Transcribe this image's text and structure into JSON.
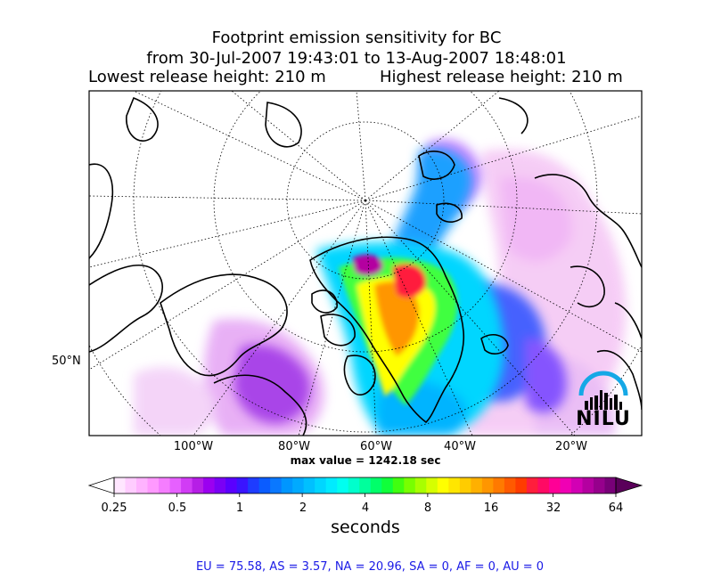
{
  "title": {
    "line1": "Footprint emission sensitivity for BC",
    "line2": "from 30-Jul-2007 19:43:01 to 13-Aug-2007 18:48:01",
    "lowest": "Lowest release height: 210 m",
    "highest": "Highest release height: 210 m"
  },
  "map": {
    "lat_label": "50°N",
    "lon_labels": [
      "100°W",
      "80°W",
      "60°W",
      "40°W",
      "20°W"
    ],
    "max_value": "max value = 1242.18 sec",
    "logo_text": "NILU"
  },
  "colorbar": {
    "ticks": [
      "0.25",
      "0.5",
      "1",
      "2",
      "4",
      "8",
      "16",
      "32",
      "64"
    ],
    "label": "seconds",
    "colors": [
      "#ffe6ff",
      "#ffccff",
      "#ffb3ff",
      "#ff99ff",
      "#f57dff",
      "#e660ff",
      "#d13cf5",
      "#b61ee6",
      "#9b00f0",
      "#7a00f5",
      "#5a00ff",
      "#3a14ff",
      "#1e3cff",
      "#0a5cff",
      "#0a78ff",
      "#0096ff",
      "#00aaff",
      "#00c0ff",
      "#00d6ff",
      "#00ebff",
      "#00fff0",
      "#00ffcc",
      "#00ff9c",
      "#00ff6a",
      "#10ff3a",
      "#40ff10",
      "#78ff00",
      "#a8ff00",
      "#d6ff00",
      "#ffff00",
      "#ffe600",
      "#ffcc00",
      "#ffb000",
      "#ff9600",
      "#ff7a00",
      "#ff5a00",
      "#ff3c00",
      "#ff1e3c",
      "#ff0a64",
      "#ff0096",
      "#f000b4",
      "#d200b4",
      "#b400a0",
      "#96008c",
      "#780078"
    ]
  },
  "footer": "EU = 75.58,  AS = 3.57,  NA = 20.96,  SA = 0,  AF = 0,  AU = 0",
  "chart_data": {
    "type": "heatmap",
    "title": "Footprint emission sensitivity for BC",
    "subtitle": "from 30-Jul-2007 19:43:01 to 13-Aug-2007 18:48:01",
    "xlabel": "",
    "ylabel": "",
    "max_value_sec": 1242.18,
    "colorbar_label": "seconds",
    "colorbar_ticks": [
      0.25,
      0.5,
      1,
      2,
      4,
      8,
      16,
      32,
      64
    ],
    "scale": "log2",
    "lon_ticks_deg": [
      -100,
      -80,
      -60,
      -40,
      -20
    ],
    "lat_ticks_deg": [
      50
    ],
    "region_fractions": {
      "EU": 75.58,
      "AS": 3.57,
      "NA": 20.96,
      "SA": 0,
      "AF": 0,
      "AU": 0
    },
    "grid": true
  }
}
